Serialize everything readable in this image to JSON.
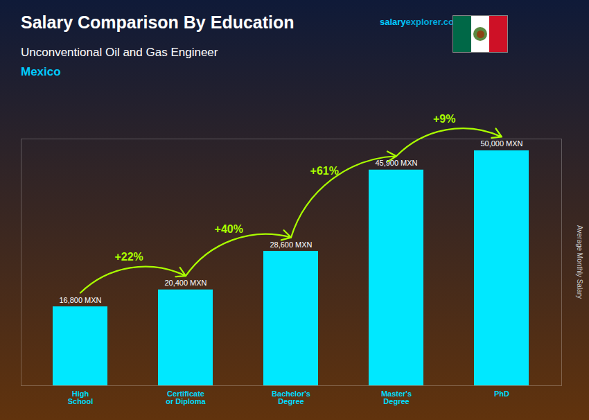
{
  "chart_data": {
    "type": "bar",
    "title": "Salary Comparison By Education",
    "subtitle": [
      "Unconventional Oil and Gas Engineer",
      "Mexico"
    ],
    "source": [
      "salary",
      "explorer.com"
    ],
    "y_label": "Average Monthly Salary",
    "categories": [
      "High\nSchool",
      "Certificate\nor Diploma",
      "Bachelor's\nDegree",
      "Master's\nDegree",
      "PhD"
    ],
    "values": [
      16800,
      20400,
      28600,
      45900,
      50000
    ],
    "value_labels": [
      "16,800 MXN",
      "20,400 MXN",
      "28,600 MXN",
      "45,900 MXN",
      "50,000 MXN"
    ],
    "data_labels": true,
    "color": "#00e8ff",
    "annotations": [
      {
        "text": "+22%",
        "color": "#aaff00"
      },
      {
        "text": "+40%",
        "color": "#aaff00"
      },
      {
        "text": "+61%",
        "color": "#aaff00"
      },
      {
        "text": "+9%",
        "color": "#aaff00"
      }
    ],
    "ylim": [
      0,
      52500
    ],
    "yticks": [],
    "grid": false,
    "tick_labels": "x"
  }
}
